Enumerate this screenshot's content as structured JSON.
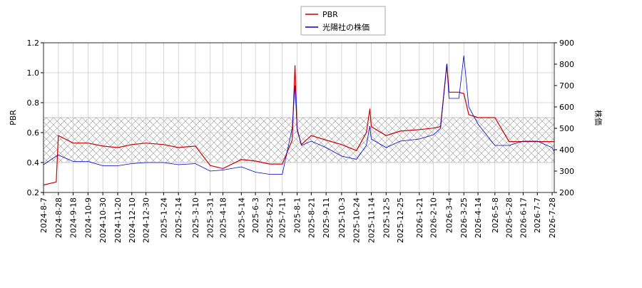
{
  "chart_data": {
    "type": "line",
    "y_label": "PBR",
    "y2_label": "株価",
    "x": [
      "2024-8-7",
      "2024-8-25",
      "2024-8-28",
      "2024-9-18",
      "2024-10-9",
      "2024-10-30",
      "2024-11-20",
      "2024-12-10",
      "2024-12-30",
      "2025-1-24",
      "2025-2-14",
      "2025-3-10",
      "2025-3-31",
      "2025-4-18",
      "2025-5-14",
      "2025-6-3",
      "2025-6-23",
      "2025-7-11",
      "2025-7-25",
      "2025-7-29",
      "2025-8-1",
      "2025-8-7",
      "2025-8-21",
      "2025-9-11",
      "2025-10-3",
      "2025-10-24",
      "2025-11-7",
      "2025-11-12",
      "2025-11-14",
      "2025-12-5",
      "2025-12-25",
      "2026-1-21",
      "2026-2-10",
      "2026-2-20",
      "2026-3-1",
      "2026-3-4",
      "2026-3-18",
      "2026-3-25",
      "2026-4-1",
      "2026-4-14",
      "2026-5-8",
      "2026-5-28",
      "2026-6-17",
      "2026-7-7",
      "2026-7-28",
      "2026-7-31"
    ],
    "series": [
      {
        "name": "PBR",
        "color": "#cc0000",
        "axis": "y",
        "values": [
          0.25,
          0.27,
          0.58,
          0.53,
          0.53,
          0.51,
          0.5,
          0.52,
          0.53,
          0.52,
          0.5,
          0.51,
          0.38,
          0.36,
          0.42,
          0.41,
          0.39,
          0.39,
          0.55,
          1.05,
          0.62,
          0.52,
          0.58,
          0.55,
          0.52,
          0.48,
          0.6,
          0.76,
          0.64,
          0.58,
          0.61,
          0.62,
          0.63,
          0.64,
          1.06,
          0.87,
          0.87,
          0.86,
          0.72,
          0.7,
          0.7,
          0.54,
          0.54,
          0.54,
          0.54,
          0.54
        ]
      },
      {
        "name": "光陽社の株価",
        "color": "#0000cc",
        "axis": "y2",
        "values": [
          330,
          370,
          375,
          345,
          345,
          325,
          325,
          335,
          340,
          340,
          330,
          335,
          300,
          305,
          320,
          295,
          285,
          285,
          500,
          700,
          500,
          420,
          440,
          410,
          370,
          355,
          420,
          510,
          450,
          410,
          440,
          450,
          470,
          500,
          800,
          640,
          640,
          840,
          600,
          520,
          420,
          420,
          440,
          440,
          410,
          390
        ]
      }
    ],
    "xlim": [
      "2024-8-7",
      "2026-7-31"
    ],
    "xticks": [
      "2024-8-7",
      "2024-8-28",
      "2024-9-18",
      "2024-10-9",
      "2024-10-30",
      "2024-11-20",
      "2024-12-10",
      "2024-12-30",
      "2025-1-24",
      "2025-2-14",
      "2025-3-10",
      "2025-3-31",
      "2025-4-18",
      "2025-5-14",
      "2025-6-3",
      "2025-6-23",
      "2025-7-11",
      "2025-8-1",
      "2025-8-21",
      "2025-9-11",
      "2025-10-3",
      "2025-10-24",
      "2025-11-14",
      "2025-12-5",
      "2025-12-25",
      "2026-1-21",
      "2026-2-10",
      "2026-3-4",
      "2026-3-25",
      "2026-4-14",
      "2026-5-8",
      "2026-5-28",
      "2026-6-17",
      "2026-7-7",
      "2026-7-28"
    ],
    "ylim": [
      0.2,
      1.2
    ],
    "yticks": [
      0.2,
      0.4,
      0.6,
      0.8,
      {
        "value": 1,
        "label": "1.0"
      },
      1.2
    ],
    "y2lim": [
      200,
      900
    ],
    "y2ticks": [
      200,
      300,
      400,
      500,
      600,
      700,
      800,
      900
    ],
    "shaded_range": [
      0.4,
      0.7
    ],
    "grid": true,
    "legend": "top"
  }
}
